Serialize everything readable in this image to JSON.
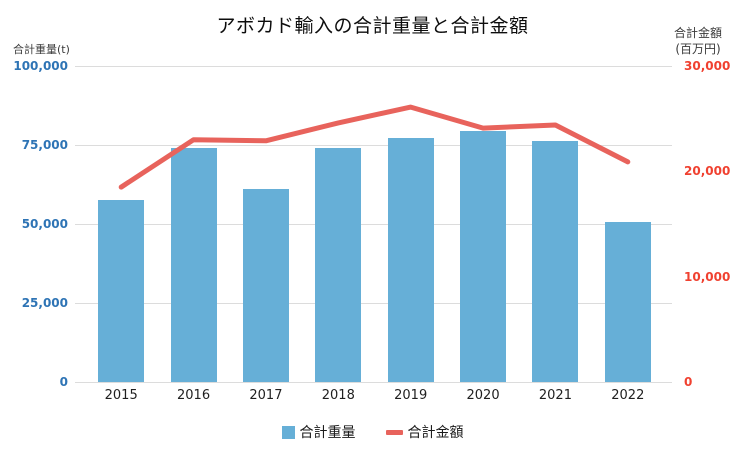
{
  "title": "アボカド輸入の合計重量と合計金額",
  "left_axis": {
    "title": "合計重量(t)",
    "tick_labels": [
      "100,000",
      "75,000",
      "50,000",
      "25,000",
      "0"
    ],
    "tick_values": [
      100000,
      75000,
      50000,
      25000,
      0
    ],
    "max": 100000,
    "label_color": "#2e74b5"
  },
  "right_axis": {
    "title_line1": "合計金額",
    "title_line2": "(百万円)",
    "tick_labels": [
      "30,000",
      "20,000",
      "10,000",
      "0"
    ],
    "tick_values": [
      30000,
      20000,
      10000,
      0
    ],
    "max": 30000,
    "label_color": "#f04130"
  },
  "legend": {
    "items": [
      {
        "label": "合計重量",
        "marker": "square-icon",
        "color": "#66afd7"
      },
      {
        "label": "合計金額",
        "marker": "dash-icon",
        "color": "#e8635c"
      }
    ]
  },
  "chart_data": {
    "type": "bar+line combo, dual y-axes",
    "title": "アボカド輸入の合計重量と合計金額",
    "categories": [
      "2015",
      "2016",
      "2017",
      "2018",
      "2019",
      "2020",
      "2021",
      "2022"
    ],
    "series": [
      {
        "name": "合計重量",
        "type": "bar",
        "axis": "left",
        "unit": "t",
        "color": "#66afd7",
        "values": [
          57700,
          73900,
          61000,
          74000,
          77200,
          79400,
          76400,
          50700
        ]
      },
      {
        "name": "合計金額",
        "type": "line",
        "axis": "right",
        "unit": "百万円",
        "color": "#e8635c",
        "values": [
          18500,
          23000,
          22900,
          24600,
          26100,
          24100,
          24400,
          20900
        ]
      }
    ],
    "left_ylabel": "合計重量(t)",
    "right_ylabel": "合計金額(百万円)",
    "left_ylim": [
      0,
      100000
    ],
    "right_ylim": [
      0,
      30000
    ],
    "grid": true,
    "gridline_color": "#dcdcdc",
    "legend_position": "bottom"
  }
}
